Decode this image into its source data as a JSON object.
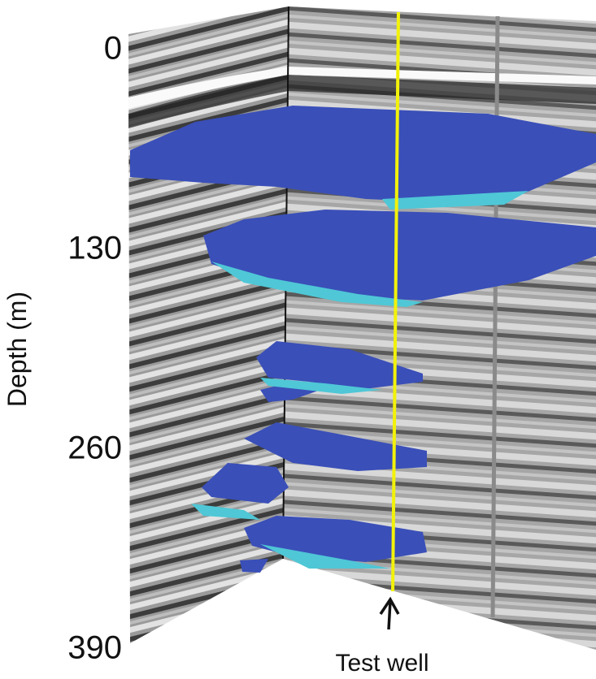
{
  "axis": {
    "label": "Depth (m)",
    "ticks": [
      0,
      130,
      260,
      390
    ]
  },
  "annotation": "Test well"
}
